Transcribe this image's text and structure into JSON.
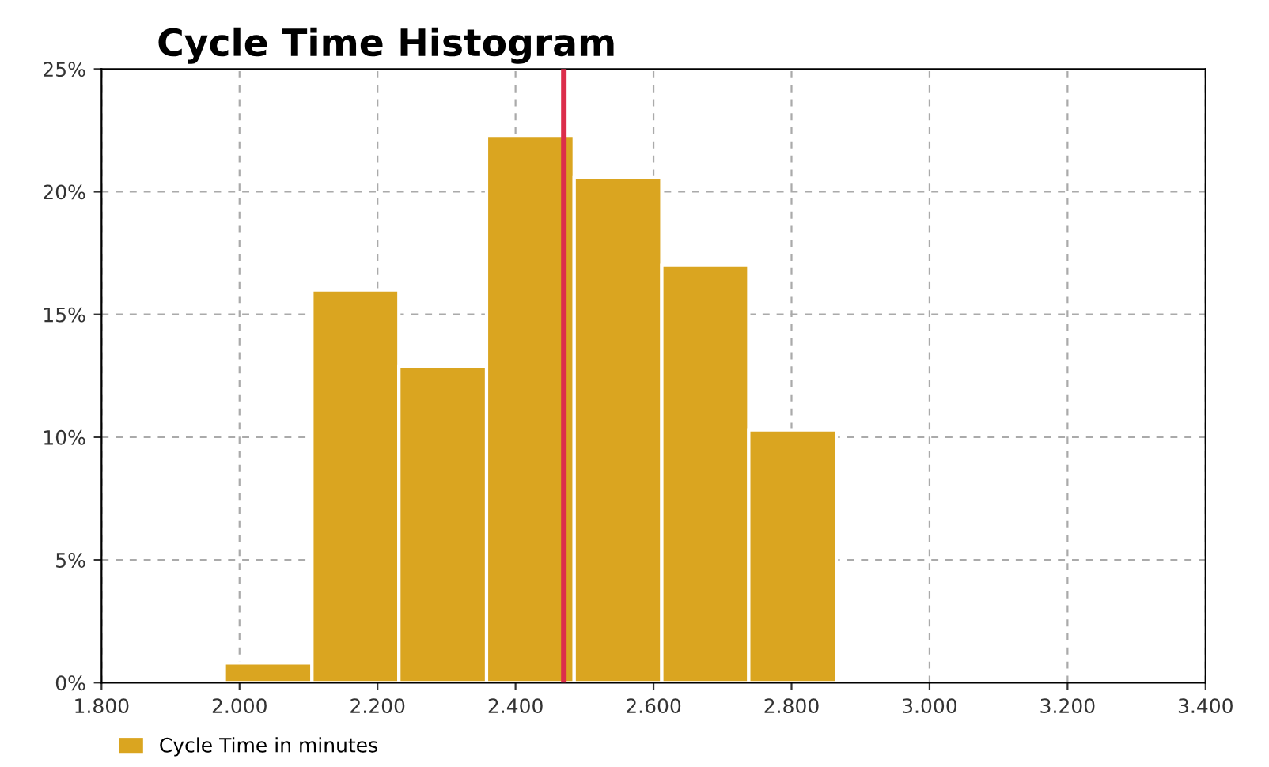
{
  "chart_data": {
    "type": "histogram",
    "title": "Cycle Time Histogram",
    "bins": [
      1978,
      2105,
      2231,
      2358,
      2485,
      2612,
      2738,
      2865
    ],
    "series": [
      {
        "name": "Cycle Time in minutes",
        "color": "#daa520",
        "values": [
          0.8,
          16.0,
          12.9,
          22.3,
          20.6,
          17.0,
          10.3
        ]
      }
    ],
    "xlim": [
      1800,
      3400
    ],
    "xticks": [
      {
        "value": 1800,
        "label": "1.800"
      },
      {
        "value": 2000,
        "label": "2.000"
      },
      {
        "value": 2200,
        "label": "2.200"
      },
      {
        "value": 2400,
        "label": "2.400"
      },
      {
        "value": 2600,
        "label": "2.600"
      },
      {
        "value": 2800,
        "label": "2.800"
      },
      {
        "value": 3000,
        "label": "3.000"
      },
      {
        "value": 3200,
        "label": "3.200"
      },
      {
        "value": 3400,
        "label": "3.400"
      }
    ],
    "ylim": [
      0,
      25
    ],
    "yticks": [
      {
        "value": 0,
        "label": "0%"
      },
      {
        "value": 5,
        "label": "5%"
      },
      {
        "value": 10,
        "label": "10%"
      },
      {
        "value": 15,
        "label": "15%"
      },
      {
        "value": 20,
        "label": "20%"
      },
      {
        "value": 25,
        "label": "25%"
      }
    ],
    "ref_lines": [
      {
        "axis": "x",
        "value": 2470,
        "color": "#dc2d4b"
      }
    ],
    "grid": true,
    "legend": "bottom left"
  }
}
